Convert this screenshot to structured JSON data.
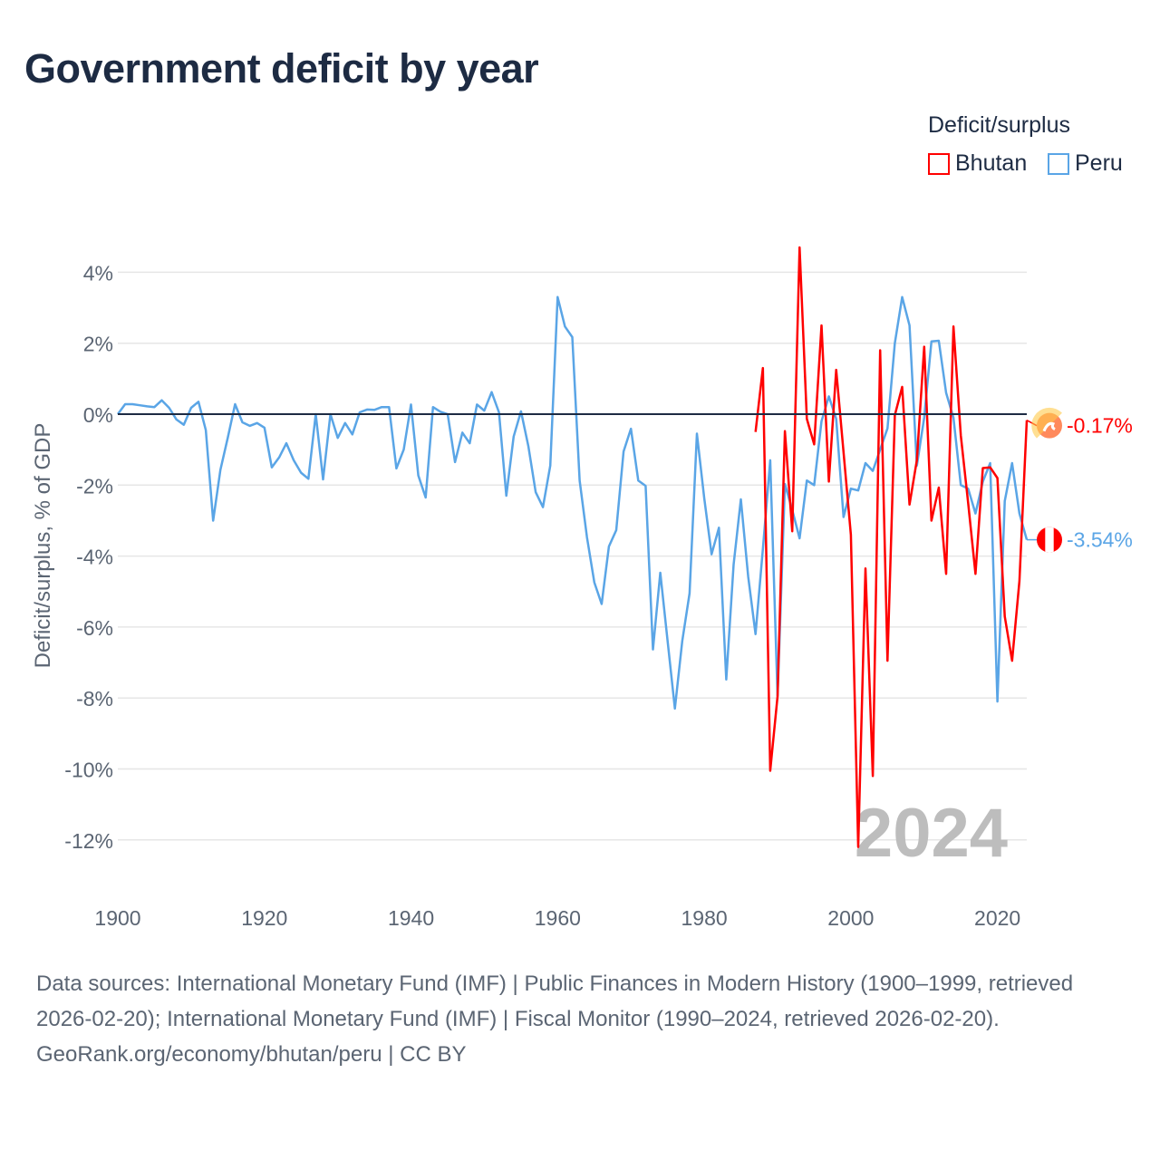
{
  "title": "Government deficit by year",
  "legend": {
    "title": "Deficit/surplus",
    "items": [
      {
        "label": "Bhutan",
        "color": "#ff0000"
      },
      {
        "label": "Peru",
        "color": "#5aa5e6"
      }
    ]
  },
  "watermark_year": "2024",
  "end_labels": {
    "bhutan": "-0.17%",
    "peru": "-3.54%"
  },
  "footer": {
    "sources": "Data sources: International Monetary Fund (IMF) | Public Finances in Modern History (1900–1999, retrieved 2026-02-20); International Monetary Fund (IMF) | Fiscal Monitor (1990–2024, retrieved 2026-02-20).",
    "credit": "GeoRank.org/economy/bhutan/peru | CC BY"
  },
  "chart_data": {
    "type": "line",
    "title": "Government deficit by year",
    "xlabel": "",
    "ylabel": "Deficit/surplus, % of GDP",
    "xlim": [
      1900,
      2024
    ],
    "ylim": [
      -13,
      4.7
    ],
    "xticks": [
      1900,
      1920,
      1940,
      1960,
      1980,
      2000,
      2020
    ],
    "xtick_labels": [
      "1900",
      "1920",
      "1940",
      "1960",
      "1980",
      "2000",
      "2020"
    ],
    "yticks": [
      4,
      2,
      0,
      -2,
      -4,
      -6,
      -8,
      -10,
      -12
    ],
    "ytick_labels": [
      "4%",
      "2%",
      "0%",
      "-2%",
      "-4%",
      "-6%",
      "-8%",
      "-10%",
      "-12%"
    ],
    "grid": true,
    "legend_position": "top-right",
    "series": [
      {
        "name": "Bhutan",
        "color": "#ff0000",
        "start_year": 1987,
        "values": [
          -0.5,
          1.3,
          -10.05,
          -7.95,
          -0.48,
          -3.3,
          4.7,
          -0.13,
          -0.85,
          2.5,
          -1.9,
          1.25,
          -1.07,
          -3.4,
          -12.2,
          -4.35,
          -10.2,
          1.8,
          -6.95,
          -0.03,
          0.77,
          -2.55,
          -1.3,
          1.9,
          -3.0,
          -2.07,
          -4.5,
          2.47,
          -0.6,
          -2.5,
          -4.5,
          -1.52,
          -1.5,
          -1.8,
          -5.7,
          -6.95,
          -4.7,
          -0.17
        ]
      },
      {
        "name": "Peru",
        "color": "#5aa5e6",
        "start_year": 1900,
        "values": [
          0,
          0.28,
          0.28,
          0.25,
          0.22,
          0.2,
          0.39,
          0.18,
          -0.15,
          -0.3,
          0.18,
          0.35,
          -0.45,
          -3.0,
          -1.57,
          -0.67,
          0.28,
          -0.23,
          -0.33,
          -0.25,
          -0.38,
          -1.5,
          -1.22,
          -0.82,
          -1.3,
          -1.65,
          -1.82,
          0,
          -1.84,
          0,
          -0.67,
          -0.25,
          -0.57,
          0.05,
          0.13,
          0.12,
          0.2,
          0.2,
          -1.53,
          -1.0,
          0.27,
          -1.73,
          -2.35,
          0.2,
          0.07,
          0,
          -1.35,
          -0.52,
          -0.82,
          0.27,
          0.1,
          0.62,
          0.05,
          -2.3,
          -0.63,
          0.08,
          -0.9,
          -2.2,
          -2.62,
          -1.45,
          3.3,
          2.47,
          2.17,
          -1.87,
          -3.47,
          -4.74,
          -5.35,
          -3.73,
          -3.27,
          -1.05,
          -0.41,
          -1.87,
          -2.02,
          -6.63,
          -4.47,
          -6.4,
          -8.3,
          -6.4,
          -5.05,
          -0.55,
          -2.37,
          -3.95,
          -3.2,
          -7.48,
          -4.24,
          -2.4,
          -4.58,
          -6.2,
          -3.8,
          -1.3,
          -7.95,
          -1.97,
          -2.7,
          -3.5,
          -1.87,
          -2.0,
          -0.2,
          0.5,
          -0.13,
          -2.9,
          -2.1,
          -2.15,
          -1.38,
          -1.6,
          -1.0,
          -0.4,
          2.0,
          3.3,
          2.5,
          -1.45,
          -0.1,
          2.05,
          2.07,
          0.6,
          -0.1,
          -2.0,
          -2.1,
          -2.8,
          -1.9,
          -1.38,
          -8.1,
          -2.45,
          -1.38,
          -2.8,
          -3.54
        ]
      }
    ]
  }
}
